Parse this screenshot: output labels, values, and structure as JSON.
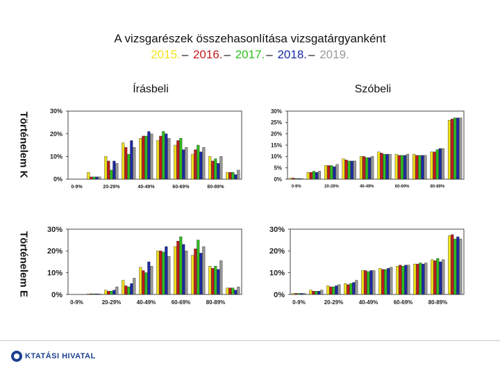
{
  "title": {
    "line1": "A vizsgarészek összehasonlítása vizsgatárgyanként",
    "years": [
      {
        "text": "2015.",
        "color": "#f2e21a"
      },
      {
        "text": "2016.",
        "color": "#c41a1a"
      },
      {
        "text": "2017.",
        "color": "#2fbf1e"
      },
      {
        "text": "2018.",
        "color": "#1a2aa8"
      },
      {
        "text": "2019.",
        "color": "#9a9a9a"
      }
    ],
    "separator": "–"
  },
  "columns": {
    "left": "Írásbeli",
    "right": "Szóbeli"
  },
  "rows": {
    "top": "Történelem K",
    "bottom": "Történelem E"
  },
  "logo": {
    "text": "KTATÁSI HIVATAL"
  },
  "colors": {
    "y2015": "#f2e21a",
    "y2016": "#c41a1a",
    "y2017": "#2fbf1e",
    "y2018": "#1a2aa8",
    "y2019": "#9a9a9a"
  },
  "chart_data": [
    {
      "id": "tortenelem-k-irasbeli",
      "type": "bar",
      "categories": [
        "0-9%",
        "10-19%",
        "20-29%",
        "30-39%",
        "40-49%",
        "50-59%",
        "60-69%",
        "70-79%",
        "80-89%",
        "90-100%"
      ],
      "category_labels": [
        "0-9%",
        "",
        "20-29%",
        "",
        "40-49%",
        "",
        "60-69%",
        "",
        "80-89%",
        ""
      ],
      "yticks": [
        "0%",
        "10%",
        "20%",
        "30%"
      ],
      "ylim": [
        0,
        30
      ],
      "series": [
        {
          "name": "2015.",
          "values": [
            0,
            3,
            10,
            16,
            18,
            17,
            15,
            11,
            10,
            3
          ]
        },
        {
          "name": "2016.",
          "values": [
            0,
            1,
            8,
            14,
            19,
            19,
            17,
            13,
            8,
            3
          ]
        },
        {
          "name": "2017.",
          "values": [
            0,
            1,
            4,
            11,
            19,
            21,
            18,
            15,
            9,
            3
          ]
        },
        {
          "name": "2018.",
          "values": [
            0,
            1,
            8,
            17,
            21,
            20,
            13,
            12,
            7,
            2
          ]
        },
        {
          "name": "2019.",
          "values": [
            0,
            1,
            7,
            14,
            20,
            18,
            14,
            14,
            10,
            4
          ]
        }
      ]
    },
    {
      "id": "tortenelem-k-szobeli",
      "type": "bar",
      "categories": [
        "0-9%",
        "10-19%",
        "20-29%",
        "30-39%",
        "40-49%",
        "50-59%",
        "60-69%",
        "70-79%",
        "80-89%",
        "90-100%"
      ],
      "category_labels": [
        "0-9%",
        "",
        "20-29%",
        "",
        "40-49%",
        "",
        "60-69%",
        "",
        "80-89%",
        ""
      ],
      "yticks": [
        "0%",
        "5%",
        "10%",
        "15%",
        "20%",
        "25%",
        "30%"
      ],
      "ylim": [
        0,
        30
      ],
      "series": [
        {
          "name": "2015.",
          "values": [
            0.5,
            3,
            6,
            9,
            10,
            12,
            11,
            11,
            12,
            26
          ]
        },
        {
          "name": "2016.",
          "values": [
            0.5,
            3,
            6,
            8.5,
            10,
            11.5,
            10.5,
            10.5,
            12,
            26.5
          ]
        },
        {
          "name": "2017.",
          "values": [
            0.3,
            3.5,
            6,
            8,
            9.5,
            11,
            10.5,
            10.5,
            13,
            27
          ]
        },
        {
          "name": "2018.",
          "values": [
            0.3,
            3,
            5.5,
            8,
            9.5,
            11,
            10.5,
            10.5,
            13.5,
            27
          ]
        },
        {
          "name": "2019.",
          "values": [
            0.3,
            3.5,
            6.5,
            8,
            10,
            11,
            11,
            10.5,
            13.5,
            27
          ]
        }
      ]
    },
    {
      "id": "tortenelem-e-irasbeli",
      "type": "bar",
      "categories": [
        "0-9%",
        "10-19%",
        "20-29%",
        "30-39%",
        "40-49%",
        "50-59%",
        "60-69%",
        "70-79%",
        "80-89%",
        "90-100%"
      ],
      "category_labels": [
        "0-9%",
        "",
        "20-29%",
        "",
        "40-49%",
        "",
        "60-69%",
        "",
        "80-89%",
        ""
      ],
      "yticks": [
        "0%",
        "10%",
        "20%",
        "30%"
      ],
      "ylim": [
        0,
        30
      ],
      "series": [
        {
          "name": "2015.",
          "values": [
            0,
            0.3,
            2,
            6.5,
            12.5,
            20,
            22,
            18,
            13,
            3
          ]
        },
        {
          "name": "2016.",
          "values": [
            0,
            0.3,
            1.5,
            4,
            11,
            20,
            24.5,
            21,
            12,
            3
          ]
        },
        {
          "name": "2017.",
          "values": [
            0,
            0.3,
            1.5,
            3.5,
            10,
            19.5,
            26.5,
            25,
            13,
            3
          ]
        },
        {
          "name": "2018.",
          "values": [
            0,
            0.3,
            2,
            5,
            15,
            22,
            23,
            19,
            11.5,
            2
          ]
        },
        {
          "name": "2019.",
          "values": [
            0,
            0.3,
            3.5,
            7.5,
            13,
            17.5,
            20,
            22,
            15.5,
            3.5
          ]
        }
      ]
    },
    {
      "id": "tortenelem-e-szobeli",
      "type": "bar",
      "categories": [
        "0-9%",
        "10-19%",
        "20-29%",
        "30-39%",
        "40-49%",
        "50-59%",
        "60-69%",
        "70-79%",
        "80-89%",
        "90-100%"
      ],
      "category_labels": [
        "0-9%",
        "",
        "20-29%",
        "",
        "40-49%",
        "",
        "60-69%",
        "",
        "80-89%",
        ""
      ],
      "yticks": [
        "0%",
        "10%",
        "20%",
        "30%"
      ],
      "ylim": [
        0,
        30
      ],
      "series": [
        {
          "name": "2015.",
          "values": [
            0.5,
            2,
            4,
            5,
            11,
            12,
            13,
            14,
            16,
            27
          ]
        },
        {
          "name": "2016.",
          "values": [
            0.5,
            1.5,
            3.5,
            4.5,
            11,
            11.5,
            13.5,
            14,
            15.5,
            27.5
          ]
        },
        {
          "name": "2017.",
          "values": [
            0.5,
            1.5,
            3.5,
            5,
            10.5,
            11.5,
            13,
            14.5,
            16.5,
            25.5
          ]
        },
        {
          "name": "2018.",
          "values": [
            0.5,
            1.5,
            4,
            5.5,
            11,
            12,
            13.5,
            14,
            15,
            26.5
          ]
        },
        {
          "name": "2019.",
          "values": [
            0.5,
            2,
            4.5,
            6.5,
            11,
            12.5,
            13.5,
            14.5,
            16,
            25.5
          ]
        }
      ]
    }
  ]
}
